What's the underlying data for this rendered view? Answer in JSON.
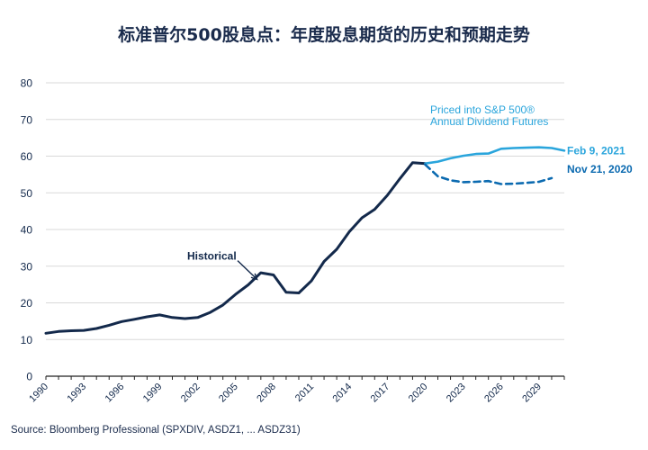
{
  "title": "标准普尔500股息点：年度股息期货的历史和预期走势",
  "source": "Source: Bloomberg Professional (SPXDIV, ASDZ1, ... ASDZ31)",
  "chart_data": {
    "type": "line",
    "title": "标准普尔500股息点：年度股息期货的历史和预期走势",
    "xlim": [
      1990,
      2031
    ],
    "ylim": [
      0,
      80
    ],
    "yticks": [
      0,
      10,
      20,
      30,
      40,
      50,
      60,
      70,
      80
    ],
    "xticks": [
      1990,
      1993,
      1996,
      1999,
      2002,
      2005,
      2008,
      2011,
      2014,
      2017,
      2020,
      2023,
      2026,
      2029
    ],
    "grid": true,
    "colors": {
      "historical": "#13294b",
      "feb": "#2aa5dc",
      "nov": "#0b6ab0",
      "grid": "#d9d9d9",
      "axis": "#222222",
      "text": "#13294b"
    },
    "annotations": {
      "historical_label": "Historical",
      "futures_label_line1": "Priced into S&P 500®",
      "futures_label_line2": "Annual Dividend Futures"
    },
    "series": [
      {
        "name": "Historical",
        "style": "solid",
        "points": [
          [
            1990,
            11.7
          ],
          [
            1991,
            12.2
          ],
          [
            1992,
            12.4
          ],
          [
            1993,
            12.5
          ],
          [
            1994,
            13.0
          ],
          [
            1995,
            13.9
          ],
          [
            1996,
            14.9
          ],
          [
            1997,
            15.5
          ],
          [
            1998,
            16.2
          ],
          [
            1999,
            16.7
          ],
          [
            2000,
            16.0
          ],
          [
            2001,
            15.7
          ],
          [
            2002,
            16.0
          ],
          [
            2003,
            17.4
          ],
          [
            2004,
            19.4
          ],
          [
            2005,
            22.3
          ],
          [
            2006,
            24.9
          ],
          [
            2007,
            28.2
          ],
          [
            2008,
            27.6
          ],
          [
            2009,
            22.9
          ],
          [
            2010,
            22.7
          ],
          [
            2011,
            26.0
          ],
          [
            2012,
            31.3
          ],
          [
            2013,
            34.6
          ],
          [
            2014,
            39.4
          ],
          [
            2015,
            43.2
          ],
          [
            2016,
            45.5
          ],
          [
            2017,
            49.3
          ],
          [
            2018,
            53.9
          ],
          [
            2019,
            58.2
          ],
          [
            2020,
            58.0
          ]
        ]
      },
      {
        "name": "Feb 9, 2021",
        "style": "solid",
        "points": [
          [
            2020,
            58.0
          ],
          [
            2021,
            58.5
          ],
          [
            2022,
            59.4
          ],
          [
            2023,
            60.1
          ],
          [
            2024,
            60.6
          ],
          [
            2025,
            60.7
          ],
          [
            2026,
            62.0
          ],
          [
            2027,
            62.2
          ],
          [
            2028,
            62.3
          ],
          [
            2029,
            62.4
          ],
          [
            2030,
            62.2
          ],
          [
            2031,
            61.5
          ]
        ]
      },
      {
        "name": "Nov 21, 2020",
        "style": "dashed",
        "points": [
          [
            2020,
            57.7
          ],
          [
            2021,
            54.5
          ],
          [
            2022,
            53.4
          ],
          [
            2023,
            52.9
          ],
          [
            2024,
            53.0
          ],
          [
            2025,
            53.2
          ],
          [
            2026,
            52.4
          ],
          [
            2027,
            52.5
          ],
          [
            2028,
            52.7
          ],
          [
            2029,
            53.0
          ],
          [
            2030,
            54.0
          ]
        ]
      }
    ]
  }
}
